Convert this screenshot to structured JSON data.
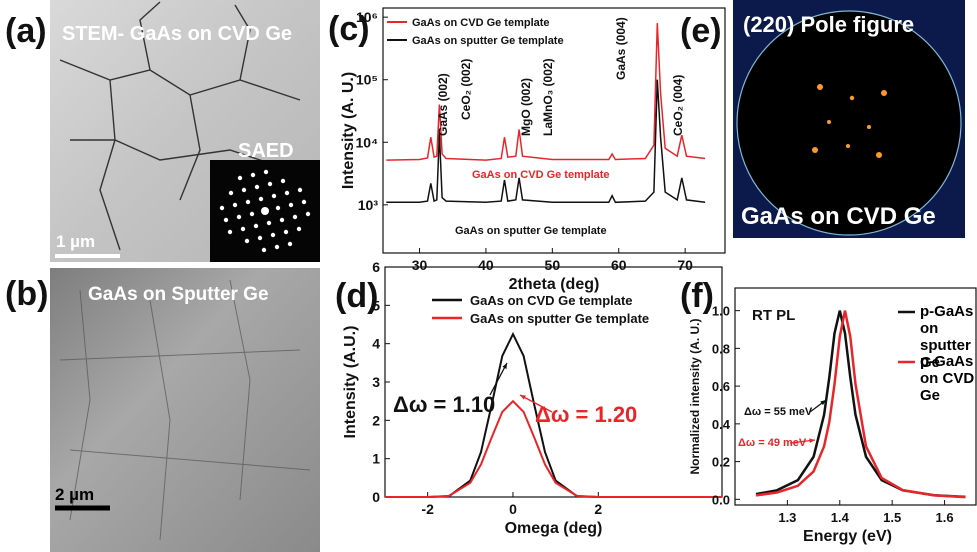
{
  "panels": {
    "a": {
      "label": "(a)",
      "title": "STEM- GaAs on CVD Ge",
      "inset": "SAED",
      "scale": "1 µm"
    },
    "b": {
      "label": "(b)",
      "title": "GaAs on Sputter Ge",
      "scale": "2 µm"
    },
    "e": {
      "label": "(e)",
      "title": "(220) Pole figure",
      "caption": "GaAs on CVD Ge"
    }
  },
  "chart_data": [
    {
      "type": "line",
      "panel_label": "(c)",
      "xlabel": "2theta (deg)",
      "ylabel": "Intensity (A. U.)",
      "log": true,
      "xlim": [
        24.5,
        76
      ],
      "ylim": [
        170,
        1400000
      ],
      "xticks": [
        30,
        40,
        50,
        60,
        70
      ],
      "yticks": [
        {
          "value": 1000,
          "label": "10³"
        },
        {
          "value": 10000,
          "label": "10⁴"
        },
        {
          "value": 100000,
          "label": "10⁵"
        },
        {
          "value": 1000000,
          "label": "10⁶"
        }
      ],
      "x": [
        25,
        30,
        31.2,
        31.7,
        32.2,
        32.6,
        33,
        33.4,
        34,
        40,
        42.3,
        42.8,
        43.3,
        44.5,
        45,
        45.5,
        50,
        58.5,
        59,
        59.5,
        64,
        65.3,
        65.8,
        66.3,
        67,
        68.8,
        69.5,
        70.2,
        73
      ],
      "series": [
        {
          "name": "GaAs on CVD Ge template",
          "color": "#e8262a",
          "values": [
            5200,
            5300,
            5600,
            12000,
            5800,
            6000,
            40000,
            6500,
            5500,
            5200,
            5500,
            12000,
            5800,
            6000,
            16000,
            6000,
            5300,
            5300,
            6500,
            5300,
            5500,
            9000,
            800000,
            60000,
            8000,
            6000,
            13000,
            6000,
            5500
          ]
        },
        {
          "name": "GaAs on sputter Ge template",
          "color": "#111111",
          "values": [
            1100,
            1100,
            1150,
            2200,
            1150,
            1200,
            14000,
            1300,
            1150,
            1100,
            1150,
            2500,
            1150,
            1200,
            2700,
            1200,
            1100,
            1100,
            1400,
            1100,
            1150,
            1600,
            100000,
            12000,
            1600,
            1200,
            2700,
            1200,
            1100
          ]
        }
      ],
      "annotations": [
        {
          "text": "GaAs (002)",
          "color": "#111111"
        },
        {
          "text": "CeO₂ (002)",
          "color": "#111111"
        },
        {
          "text": "MgO (002)",
          "color": "#111111"
        },
        {
          "text": "LaMnO₃ (002)",
          "color": "#111111"
        },
        {
          "text": "GaAs (004)",
          "color": "#111111"
        },
        {
          "text": "CeO₂ (004)",
          "color": "#111111"
        },
        {
          "text": "GaAs on CVD Ge template",
          "color": "#e8262a"
        },
        {
          "text": "GaAs on sputter Ge template",
          "color": "#111111"
        }
      ]
    },
    {
      "type": "line",
      "panel_label": "(d)",
      "xlabel": "Omega (deg)",
      "ylabel": "Intensity (A.U.)",
      "log": false,
      "xlim": [
        -3,
        4.9
      ],
      "ylim": [
        0,
        6
      ],
      "xticks": [
        -2,
        0,
        2
      ],
      "yticks": [
        0,
        1,
        2,
        3,
        4,
        5,
        6
      ],
      "x": [
        -3,
        -2.5,
        -2,
        -1.5,
        -1,
        -0.75,
        -0.5,
        -0.25,
        0,
        0.25,
        0.5,
        0.75,
        1,
        1.5,
        2,
        2.5,
        3.3,
        4.9
      ],
      "series": [
        {
          "name": "GaAs on CVD Ge template",
          "color": "#111111",
          "values": [
            0,
            0,
            0,
            0.02,
            0.43,
            1.17,
            2.4,
            3.68,
            4.25,
            3.68,
            2.4,
            1.17,
            0.43,
            0.02,
            0,
            0,
            0,
            0
          ]
        },
        {
          "name": "GaAs on sputter Ge template",
          "color": "#e8262a",
          "values": [
            0,
            0,
            0,
            0.03,
            0.37,
            0.85,
            1.55,
            2.22,
            2.5,
            2.22,
            1.55,
            0.85,
            0.37,
            0.03,
            0,
            0,
            0,
            0
          ]
        }
      ],
      "annotations": [
        {
          "text": "Δω = 1.10",
          "color": "#111111"
        },
        {
          "text": "Δω = 1.20",
          "color": "#e8262a"
        }
      ]
    },
    {
      "type": "line",
      "panel_label": "(f)",
      "xlabel": "Energy (eV)",
      "ylabel": "Normalized intensity (A. U.)",
      "log": false,
      "xlim": [
        1.2,
        1.66
      ],
      "ylim": [
        -0.03,
        1.12
      ],
      "xticks": [
        1.3,
        1.4,
        1.5,
        1.6
      ],
      "yticks": [
        {
          "value": 0,
          "label": "0.0"
        },
        0.2,
        0.4,
        0.6,
        0.8,
        {
          "value": 1,
          "label": "1.0"
        }
      ],
      "x": [
        1.24,
        1.28,
        1.32,
        1.35,
        1.37,
        1.38,
        1.39,
        1.4,
        1.41,
        1.42,
        1.43,
        1.45,
        1.48,
        1.52,
        1.58,
        1.64
      ],
      "series": [
        {
          "name": "p-GaAs on sputter Ge",
          "color": "#111111",
          "values": [
            0.028,
            0.048,
            0.102,
            0.226,
            0.448,
            0.646,
            0.88,
            1,
            0.88,
            0.646,
            0.448,
            0.226,
            0.102,
            0.048,
            0.022,
            0.013
          ]
        },
        {
          "name": "p-GaAs on CVD Ge",
          "color": "#e8262a",
          "values": [
            0.021,
            0.036,
            0.072,
            0.148,
            0.281,
            0.41,
            0.61,
            0.862,
            1,
            0.862,
            0.61,
            0.281,
            0.113,
            0.049,
            0.021,
            0.012
          ]
        }
      ],
      "annotations": [
        {
          "text": "RT PL",
          "color": "#111111"
        },
        {
          "text": "Δω = 55 meV",
          "color": "#111111"
        },
        {
          "text": "Δω = 49 meV",
          "color": "#e8262a"
        }
      ]
    }
  ]
}
